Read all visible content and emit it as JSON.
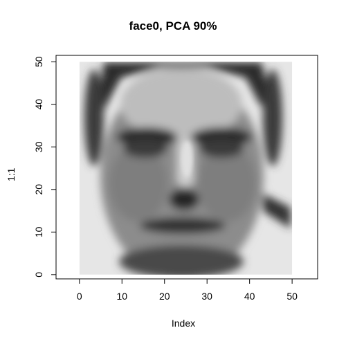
{
  "chart_data": {
    "type": "heatmap",
    "title": "face0, PCA 90%",
    "xlabel": "Index",
    "ylabel": "1:1",
    "xlim": [
      -5.5,
      56
    ],
    "ylim": [
      -1,
      51.5
    ],
    "x_ticks": [
      "0",
      "10",
      "20",
      "30",
      "40",
      "50"
    ],
    "y_ticks": [
      "0",
      "10",
      "20",
      "30",
      "40",
      "50"
    ],
    "image_extent": {
      "x": [
        0,
        50
      ],
      "y": [
        0,
        50
      ]
    },
    "colormap": "grayscale",
    "grid": false,
    "legend": "none"
  }
}
